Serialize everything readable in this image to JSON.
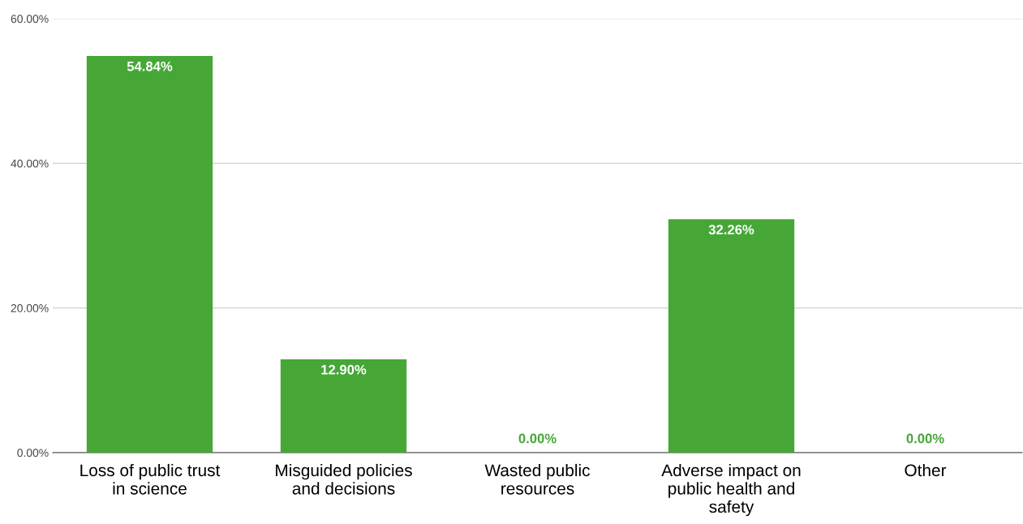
{
  "chart_data": {
    "type": "bar",
    "categories": [
      "Loss of public trust in science",
      "Misguided policies and decisions",
      "Wasted public resources",
      "Adverse impact on public health and safety",
      "Other"
    ],
    "values": [
      54.84,
      12.9,
      0,
      32.26,
      0
    ],
    "value_labels": [
      "54.84%",
      "12.90%",
      "0.00%",
      "32.26%",
      "0.00%"
    ],
    "color": "#46a737",
    "ylim": [
      0,
      60
    ],
    "yticks": [
      {
        "value": 0,
        "label": "0.00%"
      },
      {
        "value": 20,
        "label": "20.00%"
      },
      {
        "value": 40,
        "label": "40.00%"
      },
      {
        "value": 60,
        "label": "60.00%"
      }
    ],
    "grid": "y"
  }
}
